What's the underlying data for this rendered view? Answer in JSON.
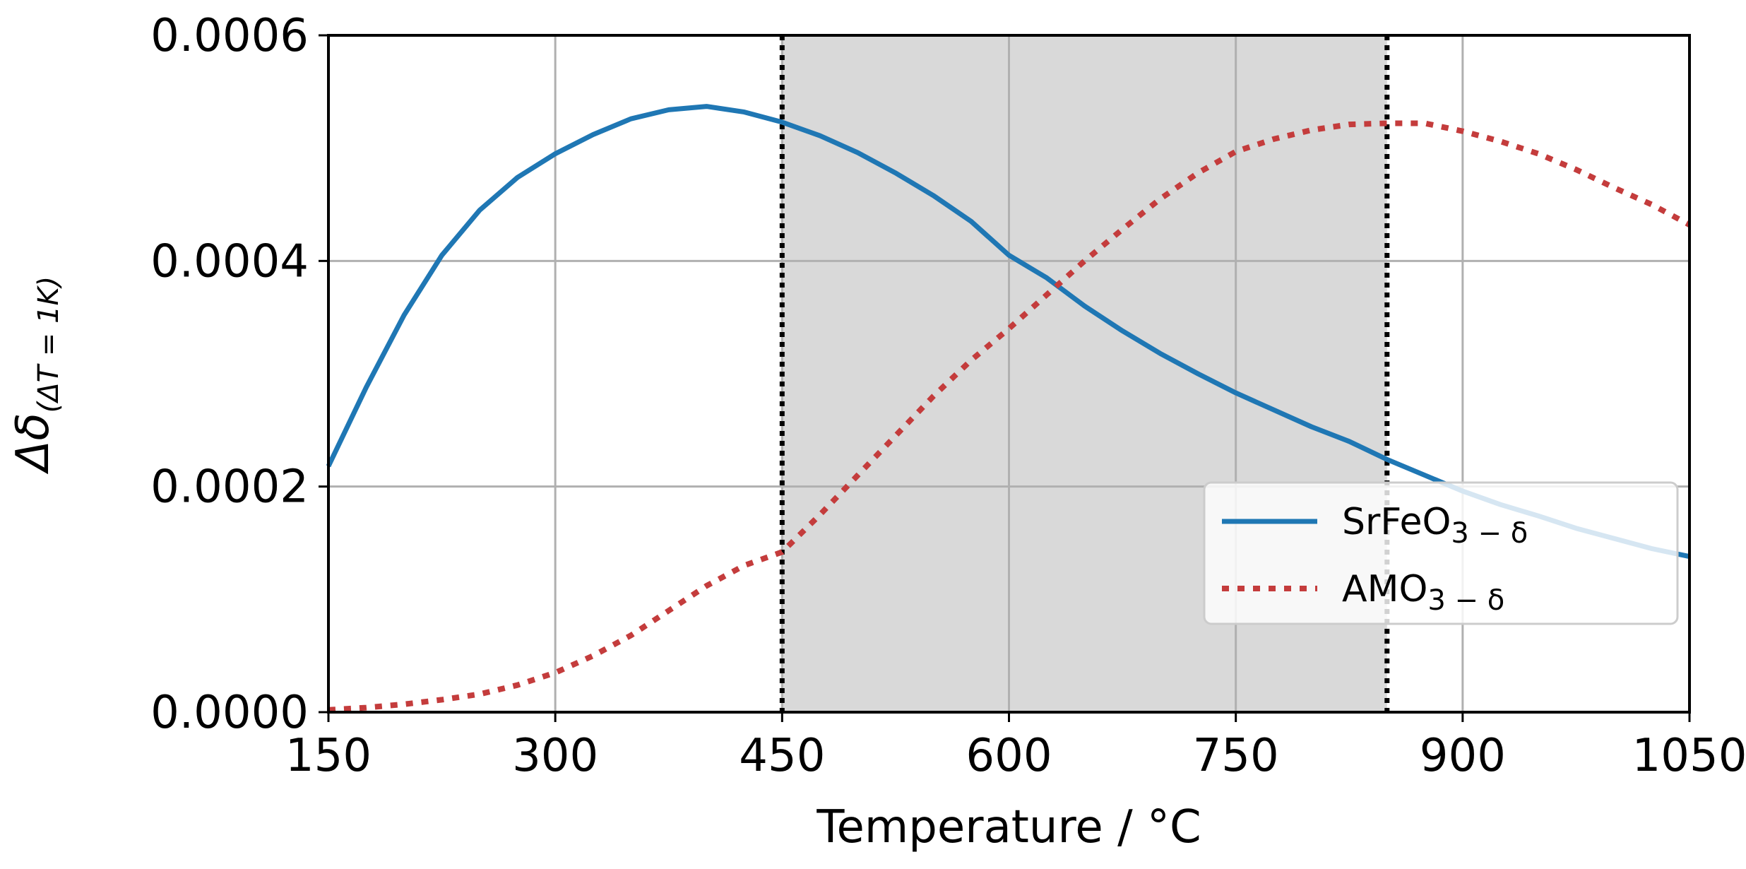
{
  "chart_data": {
    "type": "line",
    "title": "",
    "xlabel": "Temperature / °C",
    "ylabel": {
      "main": "Δδ",
      "subscript": "(ΔT = 1K)"
    },
    "xlim": [
      150,
      1050
    ],
    "ylim": [
      0,
      0.0006
    ],
    "xticks": [
      150,
      300,
      450,
      600,
      750,
      900,
      1050
    ],
    "xtick_labels": [
      "150",
      "300",
      "450",
      "600",
      "750",
      "900",
      "1050"
    ],
    "yticks": [
      0,
      0.0002,
      0.0004,
      0.0006
    ],
    "ytick_labels": [
      "0.0000",
      "0.0002",
      "0.0004",
      "0.0006"
    ],
    "grid": true,
    "shaded_region": {
      "x_start": 450,
      "x_end": 850,
      "color": "#d9d9d9",
      "boundary_color": "#000000",
      "boundary_style": "dotted"
    },
    "legend": {
      "placement": "lower-right",
      "entries": [
        {
          "base": "SrFeO",
          "sub": "3 − δ"
        },
        {
          "base": "AMO",
          "sub": "3 − δ"
        }
      ]
    },
    "series": [
      {
        "name": "SrFeO3−δ",
        "style": "solid",
        "color": "#1f77b4",
        "x": [
          150,
          175,
          200,
          225,
          250,
          275,
          300,
          325,
          350,
          375,
          400,
          425,
          450,
          475,
          500,
          525,
          550,
          575,
          600,
          625,
          650,
          675,
          700,
          725,
          750,
          775,
          800,
          825,
          850,
          875,
          900,
          925,
          950,
          975,
          1000,
          1025,
          1050
        ],
        "values": [
          0.000218,
          0.000288,
          0.000352,
          0.000405,
          0.000445,
          0.000474,
          0.000495,
          0.000512,
          0.000526,
          0.000534,
          0.000537,
          0.000532,
          0.000523,
          0.000511,
          0.000496,
          0.000478,
          0.000458,
          0.000435,
          0.000405,
          0.000385,
          0.00036,
          0.000338,
          0.000318,
          0.0003,
          0.000283,
          0.000268,
          0.000253,
          0.00024,
          0.000224,
          0.00021,
          0.000196,
          0.000184,
          0.000174,
          0.000163,
          0.000154,
          0.000145,
          0.000138
        ]
      },
      {
        "name": "AMO3−δ",
        "style": "dotted",
        "color": "#c43c3c",
        "x": [
          150,
          175,
          200,
          225,
          250,
          275,
          300,
          325,
          350,
          375,
          400,
          425,
          450,
          475,
          500,
          525,
          550,
          575,
          600,
          625,
          650,
          675,
          700,
          725,
          750,
          775,
          800,
          825,
          850,
          875,
          900,
          925,
          950,
          975,
          1000,
          1025,
          1050
        ],
        "values": [
          2e-06,
          4e-06,
          7e-06,
          1.1e-05,
          1.6e-05,
          2.4e-05,
          3.5e-05,
          5e-05,
          6.8e-05,
          9e-05,
          0.000112,
          0.00013,
          0.000142,
          0.000175,
          0.00021,
          0.000245,
          0.00028,
          0.000312,
          0.00034,
          0.00037,
          0.0004,
          0.000428,
          0.000455,
          0.000478,
          0.000497,
          0.000508,
          0.000516,
          0.000521,
          0.000522,
          0.000522,
          0.000515,
          0.000506,
          0.000495,
          0.000481,
          0.000465,
          0.00045,
          0.000432
        ]
      }
    ]
  }
}
